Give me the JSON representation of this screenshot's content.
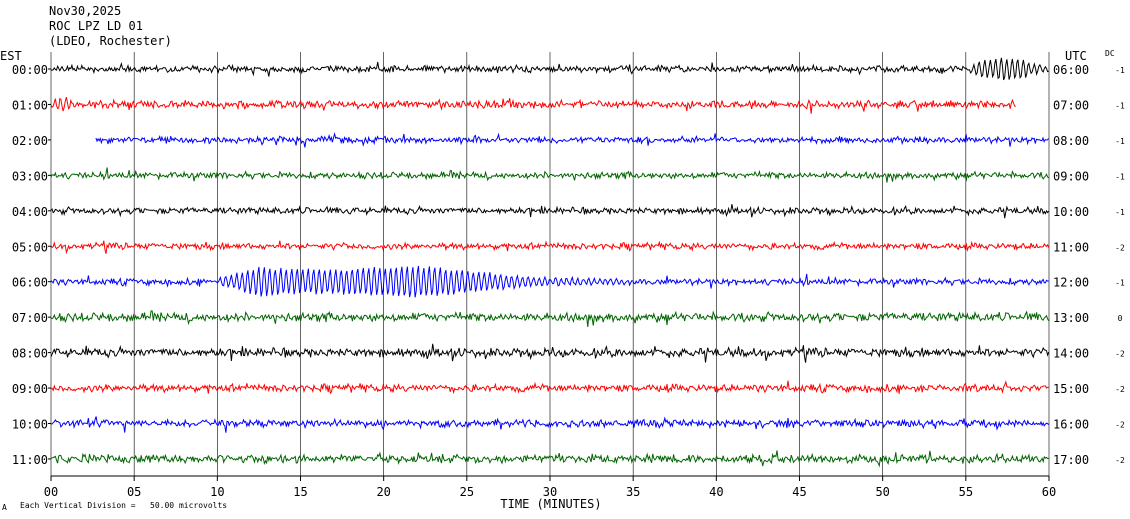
{
  "header": {
    "date": "Nov30,2025",
    "station": "ROC LPZ LD 01",
    "network": "(LDEO, Rochester)"
  },
  "left_zone_label": "EST",
  "right_zone_label": "UTC",
  "dc_label": "DC",
  "footer": {
    "scale_note": "Each Vertical Division =   50.00 microvolts",
    "corner_mark": "A"
  },
  "colors": {
    "black": "#000000",
    "red": "#ff0000",
    "blue": "#0000ff",
    "green": "#006400",
    "grid": "#000000"
  },
  "chart_data": {
    "type": "line",
    "title": "ROC LPZ LD 01",
    "xlabel": "TIME (MINUTES)",
    "xlim": [
      0,
      60
    ],
    "x_ticks": [
      "00",
      "05",
      "10",
      "15",
      "20",
      "25",
      "30",
      "35",
      "40",
      "45",
      "50",
      "55",
      "60"
    ],
    "grid": true,
    "series": [
      {
        "est": "00:00",
        "utc": "06:00",
        "dc": "-1",
        "color": "black",
        "start_min": 0,
        "end_min": 60,
        "amp": 3,
        "event": {
          "start": 55.2,
          "end": 60,
          "amp": 9
        }
      },
      {
        "est": "01:00",
        "utc": "07:00",
        "dc": "-1",
        "color": "red",
        "start_min": 0,
        "end_min": 58,
        "amp": 3.5,
        "event": {
          "start": 0,
          "end": 1.5,
          "amp": 6
        }
      },
      {
        "est": "02:00",
        "utc": "08:00",
        "dc": "-1",
        "color": "blue",
        "start_min": 2.7,
        "end_min": 60,
        "amp": 3,
        "event": null
      },
      {
        "est": "03:00",
        "utc": "09:00",
        "dc": "-1",
        "color": "green",
        "start_min": 0,
        "end_min": 60,
        "amp": 3,
        "event": null
      },
      {
        "est": "04:00",
        "utc": "10:00",
        "dc": "-1",
        "color": "black",
        "start_min": 0,
        "end_min": 60,
        "amp": 3,
        "event": null
      },
      {
        "est": "05:00",
        "utc": "11:00",
        "dc": "-2",
        "color": "red",
        "start_min": 0,
        "end_min": 60,
        "amp": 3,
        "event": null
      },
      {
        "est": "06:00",
        "utc": "12:00",
        "dc": "-1",
        "color": "blue",
        "start_min": 0,
        "end_min": 60,
        "amp": 3,
        "event": {
          "start": 9.5,
          "end": 35,
          "amp": 16
        }
      },
      {
        "est": "07:00",
        "utc": "13:00",
        "dc": "0",
        "color": "green",
        "start_min": 0,
        "end_min": 60,
        "amp": 4,
        "event": null
      },
      {
        "est": "08:00",
        "utc": "14:00",
        "dc": "-2",
        "color": "black",
        "start_min": 0,
        "end_min": 60,
        "amp": 4,
        "event": null
      },
      {
        "est": "09:00",
        "utc": "15:00",
        "dc": "-2",
        "color": "red",
        "start_min": 0,
        "end_min": 60,
        "amp": 3.5,
        "event": null
      },
      {
        "est": "10:00",
        "utc": "16:00",
        "dc": "-2",
        "color": "blue",
        "start_min": 0,
        "end_min": 60,
        "amp": 3.5,
        "event": null
      },
      {
        "est": "11:00",
        "utc": "17:00",
        "dc": "-2",
        "color": "green",
        "start_min": 0,
        "end_min": 60,
        "amp": 4,
        "event": null
      }
    ]
  }
}
